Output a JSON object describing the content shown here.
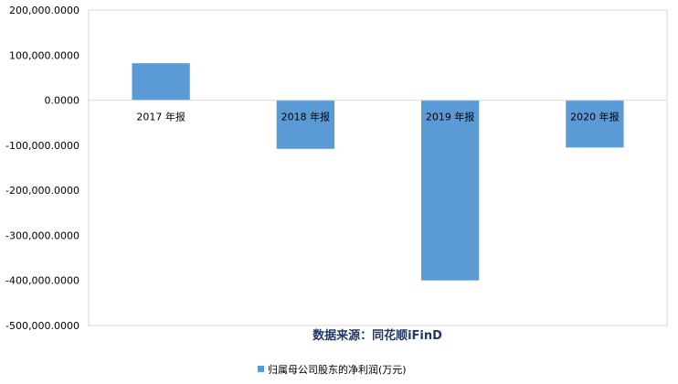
{
  "chart_data": {
    "type": "bar",
    "categories": [
      "2017 年报",
      "2018 年报",
      "2019 年报",
      "2020 年报"
    ],
    "series": [
      {
        "name": "归属母公司股东的净利润(万元)",
        "values": [
          82000,
          -108000,
          -400000,
          -105000
        ]
      }
    ],
    "y_ticks": [
      "200,000.0000",
      "100,000.0000",
      "0.0000",
      "-100,000.0000",
      "-200,000.0000",
      "-300,000.0000",
      "-400,000.0000",
      "-500,000.0000"
    ],
    "ylim": [
      -500000,
      200000
    ],
    "grid": false,
    "legend_position": "bottom",
    "source_note": "数据来源：同花顺iFinD",
    "bar_color": "#5b9bd5",
    "axis_color": "#d9d9d9"
  }
}
